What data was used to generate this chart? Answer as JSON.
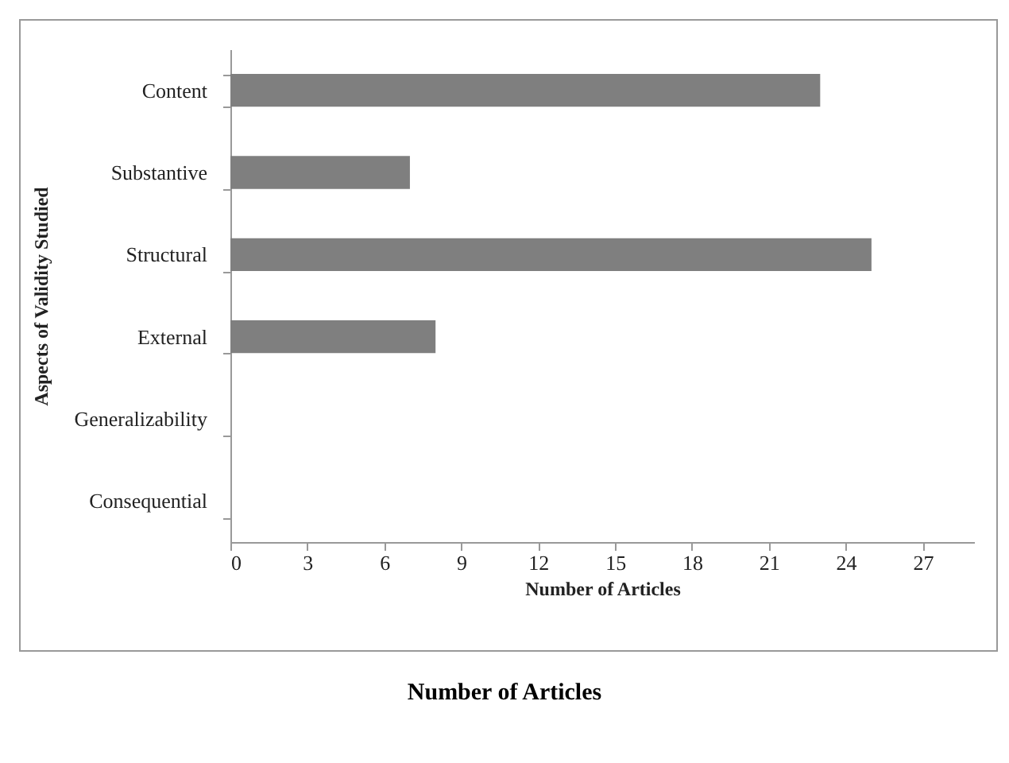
{
  "chart_data": {
    "type": "bar",
    "orientation": "horizontal",
    "categories": [
      "Content",
      "Substantive",
      "Structural",
      "External",
      "Generalizability",
      "Consequential"
    ],
    "values": [
      23,
      7,
      25,
      8,
      0,
      0
    ],
    "color": "#7f7f7f",
    "xlabel": "Number of Articles",
    "ylabel": "Aspects of Validity Studied",
    "xlim": [
      0,
      29
    ],
    "xticks": [
      0,
      3,
      6,
      9,
      12,
      15,
      18,
      21,
      24,
      27
    ],
    "grid": false,
    "annotations": [
      "Number of Articles"
    ]
  }
}
